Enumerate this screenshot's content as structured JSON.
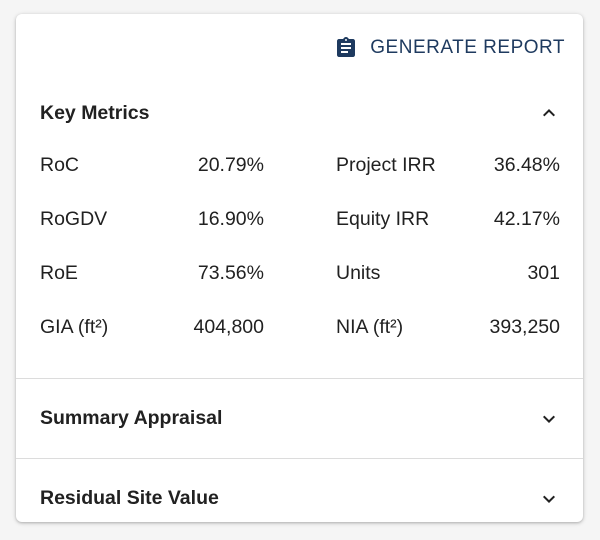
{
  "toolbar": {
    "generate_report_label": "GENERATE REPORT",
    "icon": "clipboard-icon"
  },
  "sections": {
    "key_metrics": {
      "title": "Key Metrics",
      "expanded": true,
      "rows": [
        {
          "left_label": "RoC",
          "left_value": "20.79%",
          "right_label": "Project IRR",
          "right_value": "36.48%"
        },
        {
          "left_label": "RoGDV",
          "left_value": "16.90%",
          "right_label": "Equity IRR",
          "right_value": "42.17%"
        },
        {
          "left_label": "RoE",
          "left_value": "73.56%",
          "right_label": "Units",
          "right_value": "301"
        },
        {
          "left_label": "GIA (ft²)",
          "left_value": "404,800",
          "right_label": "NIA (ft²)",
          "right_value": "393,250"
        }
      ]
    },
    "summary_appraisal": {
      "title": "Summary Appraisal",
      "expanded": false
    },
    "residual_site_value": {
      "title": "Residual Site Value",
      "expanded": false
    }
  },
  "colors": {
    "accent": "#1e3a5f",
    "text": "#212121",
    "divider": "#dcdcdc",
    "background": "#f5f5f5",
    "card": "#ffffff"
  }
}
